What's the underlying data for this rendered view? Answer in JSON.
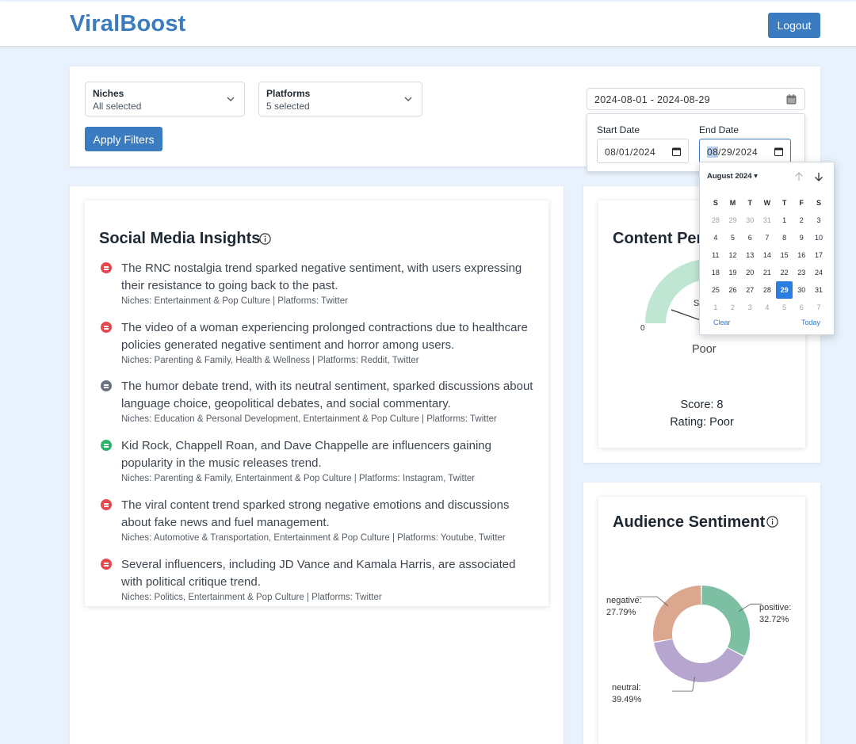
{
  "header": {
    "brand": "ViralBoost",
    "logout_label": "Logout"
  },
  "filters": {
    "niches": {
      "label": "Niches",
      "value": "All selected"
    },
    "platforms": {
      "label": "Platforms",
      "value": "5 selected"
    },
    "apply_label": "Apply Filters",
    "date_range": "2024-08-01 - 2024-08-29",
    "start_date_label": "Start Date",
    "start_date_value": "08/01/2024",
    "end_date_label": "End Date",
    "end_date_month": "08",
    "end_date_rest": "/29/2024"
  },
  "calendar": {
    "month_label": "August 2024 ▾",
    "weekdays": [
      "S",
      "M",
      "T",
      "W",
      "T",
      "F",
      "S"
    ],
    "weeks": [
      [
        {
          "d": "28",
          "o": true
        },
        {
          "d": "29",
          "o": true
        },
        {
          "d": "30",
          "o": true
        },
        {
          "d": "31",
          "o": true
        },
        {
          "d": "1"
        },
        {
          "d": "2"
        },
        {
          "d": "3"
        }
      ],
      [
        {
          "d": "4"
        },
        {
          "d": "5"
        },
        {
          "d": "6"
        },
        {
          "d": "7"
        },
        {
          "d": "8"
        },
        {
          "d": "9"
        },
        {
          "d": "10"
        }
      ],
      [
        {
          "d": "11"
        },
        {
          "d": "12"
        },
        {
          "d": "13"
        },
        {
          "d": "14"
        },
        {
          "d": "15"
        },
        {
          "d": "16"
        },
        {
          "d": "17"
        }
      ],
      [
        {
          "d": "18"
        },
        {
          "d": "19"
        },
        {
          "d": "20"
        },
        {
          "d": "21"
        },
        {
          "d": "22"
        },
        {
          "d": "23"
        },
        {
          "d": "24"
        }
      ],
      [
        {
          "d": "25"
        },
        {
          "d": "26"
        },
        {
          "d": "27"
        },
        {
          "d": "28"
        },
        {
          "d": "29",
          "sel": true
        },
        {
          "d": "30"
        },
        {
          "d": "31"
        }
      ],
      [
        {
          "d": "1",
          "o": true
        },
        {
          "d": "2",
          "o": true
        },
        {
          "d": "3",
          "o": true
        },
        {
          "d": "4",
          "o": true
        },
        {
          "d": "5",
          "o": true
        },
        {
          "d": "6",
          "o": true
        },
        {
          "d": "7",
          "o": true
        }
      ]
    ],
    "clear_label": "Clear",
    "today_label": "Today"
  },
  "insights": {
    "title": "Social Media Insights",
    "items": [
      {
        "sentiment": "negative",
        "color": "#e5484d",
        "line1": "The RNC nostalgia trend sparked negative sentiment, with users expressing",
        "line2": "their resistance to going back to the past.",
        "meta": "Niches: Entertainment & Pop Culture | Platforms: Twitter"
      },
      {
        "sentiment": "negative",
        "color": "#e5484d",
        "line1": "The video of a woman experiencing prolonged contractions due to healthcare",
        "line2": "policies generated negative sentiment and horror among users.",
        "meta": "Niches: Parenting & Family, Health & Wellness | Platforms: Reddit, Twitter"
      },
      {
        "sentiment": "neutral",
        "color": "#6b7280",
        "line1": "The humor debate trend, with its neutral sentiment, sparked discussions about",
        "line2": "language choice, geopolitical debates, and social commentary.",
        "meta": "Niches: Education & Personal Development, Entertainment & Pop Culture | Platforms: Twitter"
      },
      {
        "sentiment": "positive",
        "color": "#2fb36b",
        "line1": "Kid Rock, Chappell Roan, and Dave Chappelle are influencers gaining",
        "line2": "popularity in the music releases trend.",
        "meta": "Niches: Parenting & Family, Entertainment & Pop Culture | Platforms: Instagram, Twitter"
      },
      {
        "sentiment": "negative",
        "color": "#e5484d",
        "line1": "The viral content trend sparked strong negative emotions and discussions",
        "line2": "about fake news and fuel management.",
        "meta": "Niches: Automotive & Transportation, Entertainment & Pop Culture | Platforms: Youtube, Twitter"
      },
      {
        "sentiment": "negative",
        "color": "#e5484d",
        "line1": "Several influencers, including JD Vance and Kamala Harris, are associated",
        "line2": "with political critique trend.",
        "meta": "Niches: Politics, Entertainment & Pop Culture | Platforms: Twitter"
      }
    ]
  },
  "performance": {
    "title_visible": "Content Per",
    "gauge_min": "0",
    "gauge_partial": "S",
    "rating_under_gauge": "Poor",
    "score_text": "Score: 8",
    "rating_text": "Rating: Poor",
    "score": 8
  },
  "sentiment": {
    "title": "Audience Sentiment",
    "slices": [
      {
        "name": "positive:",
        "pct": "32.72%",
        "value": 32.72,
        "color": "#7dbfa2"
      },
      {
        "name": "neutral:",
        "pct": "39.49%",
        "value": 39.49,
        "color": "#b6a6cf"
      },
      {
        "name": "negative:",
        "pct": "27.79%",
        "value": 27.79,
        "color": "#dba78f"
      }
    ]
  }
}
